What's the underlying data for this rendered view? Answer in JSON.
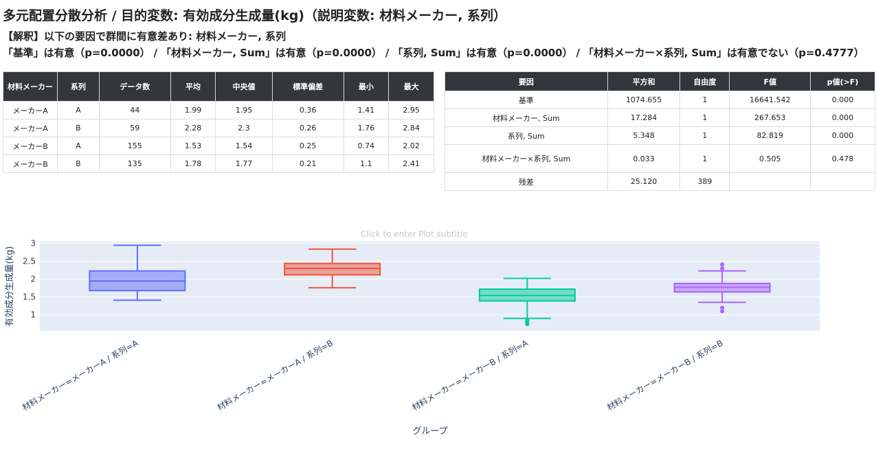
{
  "title": "多元配置分散分析 / 目的変数: 有効成分生成量(kg)（説明変数: 材料メーカー, 系列）",
  "interpretation_line1": "【解釈】以下の要因で群間に有意差あり: 材料メーカー, 系列",
  "interpretation_line2": "「基準」は有意（p=0.0000） / 「材料メーカー, Sum」は有意（p=0.0000） / 「系列, Sum」は有意（p=0.0000） / 「材料メーカー×系列, Sum」は有意でない（p=0.4777）",
  "stats_table": {
    "headers": [
      "材料メーカー",
      "系列",
      "データ数",
      "平均",
      "中央値",
      "標準偏差",
      "最小",
      "最大"
    ],
    "rows": [
      [
        "メーカーA",
        "A",
        "44",
        "1.99",
        "1.95",
        "0.36",
        "1.41",
        "2.95"
      ],
      [
        "メーカーA",
        "B",
        "59",
        "2.28",
        "2.3",
        "0.26",
        "1.76",
        "2.84"
      ],
      [
        "メーカーB",
        "A",
        "155",
        "1.53",
        "1.54",
        "0.25",
        "0.74",
        "2.02"
      ],
      [
        "メーカーB",
        "B",
        "135",
        "1.78",
        "1.77",
        "0.21",
        "1.1",
        "2.41"
      ]
    ]
  },
  "anova_table": {
    "headers": [
      "要因",
      "平方和",
      "自由度",
      "F値",
      "p値(>F)"
    ],
    "rows": [
      [
        "基準",
        "1074.655",
        "1",
        "16641.542",
        "0.000"
      ],
      [
        "材料メーカー, Sum",
        "17.284",
        "1",
        "267.653",
        "0.000"
      ],
      [
        "系列, Sum",
        "5.348",
        "1",
        "82.819",
        "0.000"
      ],
      [
        "材料メーカー×系列, Sum",
        "0.033",
        "1",
        "0.505",
        "0.478"
      ],
      [
        "残差",
        "25.120",
        "389",
        "",
        ""
      ]
    ]
  },
  "plot_subtitle_placeholder": "Click to enter Plot subtitle",
  "chart_data": {
    "type": "box",
    "xlabel": "グループ",
    "ylabel": "有効成分生成量(kg)",
    "ylim": [
      0.55,
      3.05
    ],
    "yticks": [
      1,
      1.5,
      2,
      2.5,
      3
    ],
    "grid": true,
    "categories": [
      "材料メーカー=メーカーA / 系列=A",
      "材料メーカー=メーカーA / 系列=B",
      "材料メーカー=メーカーB / 系列=A",
      "材料メーカー=メーカーB / 系列=B"
    ],
    "boxes": [
      {
        "color": "#636efa",
        "min": 1.41,
        "q1": 1.68,
        "median": 1.95,
        "q3": 2.23,
        "max": 2.95,
        "outliers": []
      },
      {
        "color": "#ef553b",
        "min": 1.76,
        "q1": 2.12,
        "median": 2.3,
        "q3": 2.44,
        "max": 2.84,
        "outliers": []
      },
      {
        "color": "#00cc96",
        "min": 0.9,
        "q1": 1.39,
        "median": 1.54,
        "q3": 1.72,
        "max": 2.02,
        "outliers": [
          0.84,
          0.79,
          0.74
        ]
      },
      {
        "color": "#ab63fa",
        "min": 1.35,
        "q1": 1.64,
        "median": 1.77,
        "q3": 1.88,
        "max": 2.23,
        "outliers": [
          2.41,
          2.3,
          1.2,
          1.1
        ]
      }
    ]
  }
}
